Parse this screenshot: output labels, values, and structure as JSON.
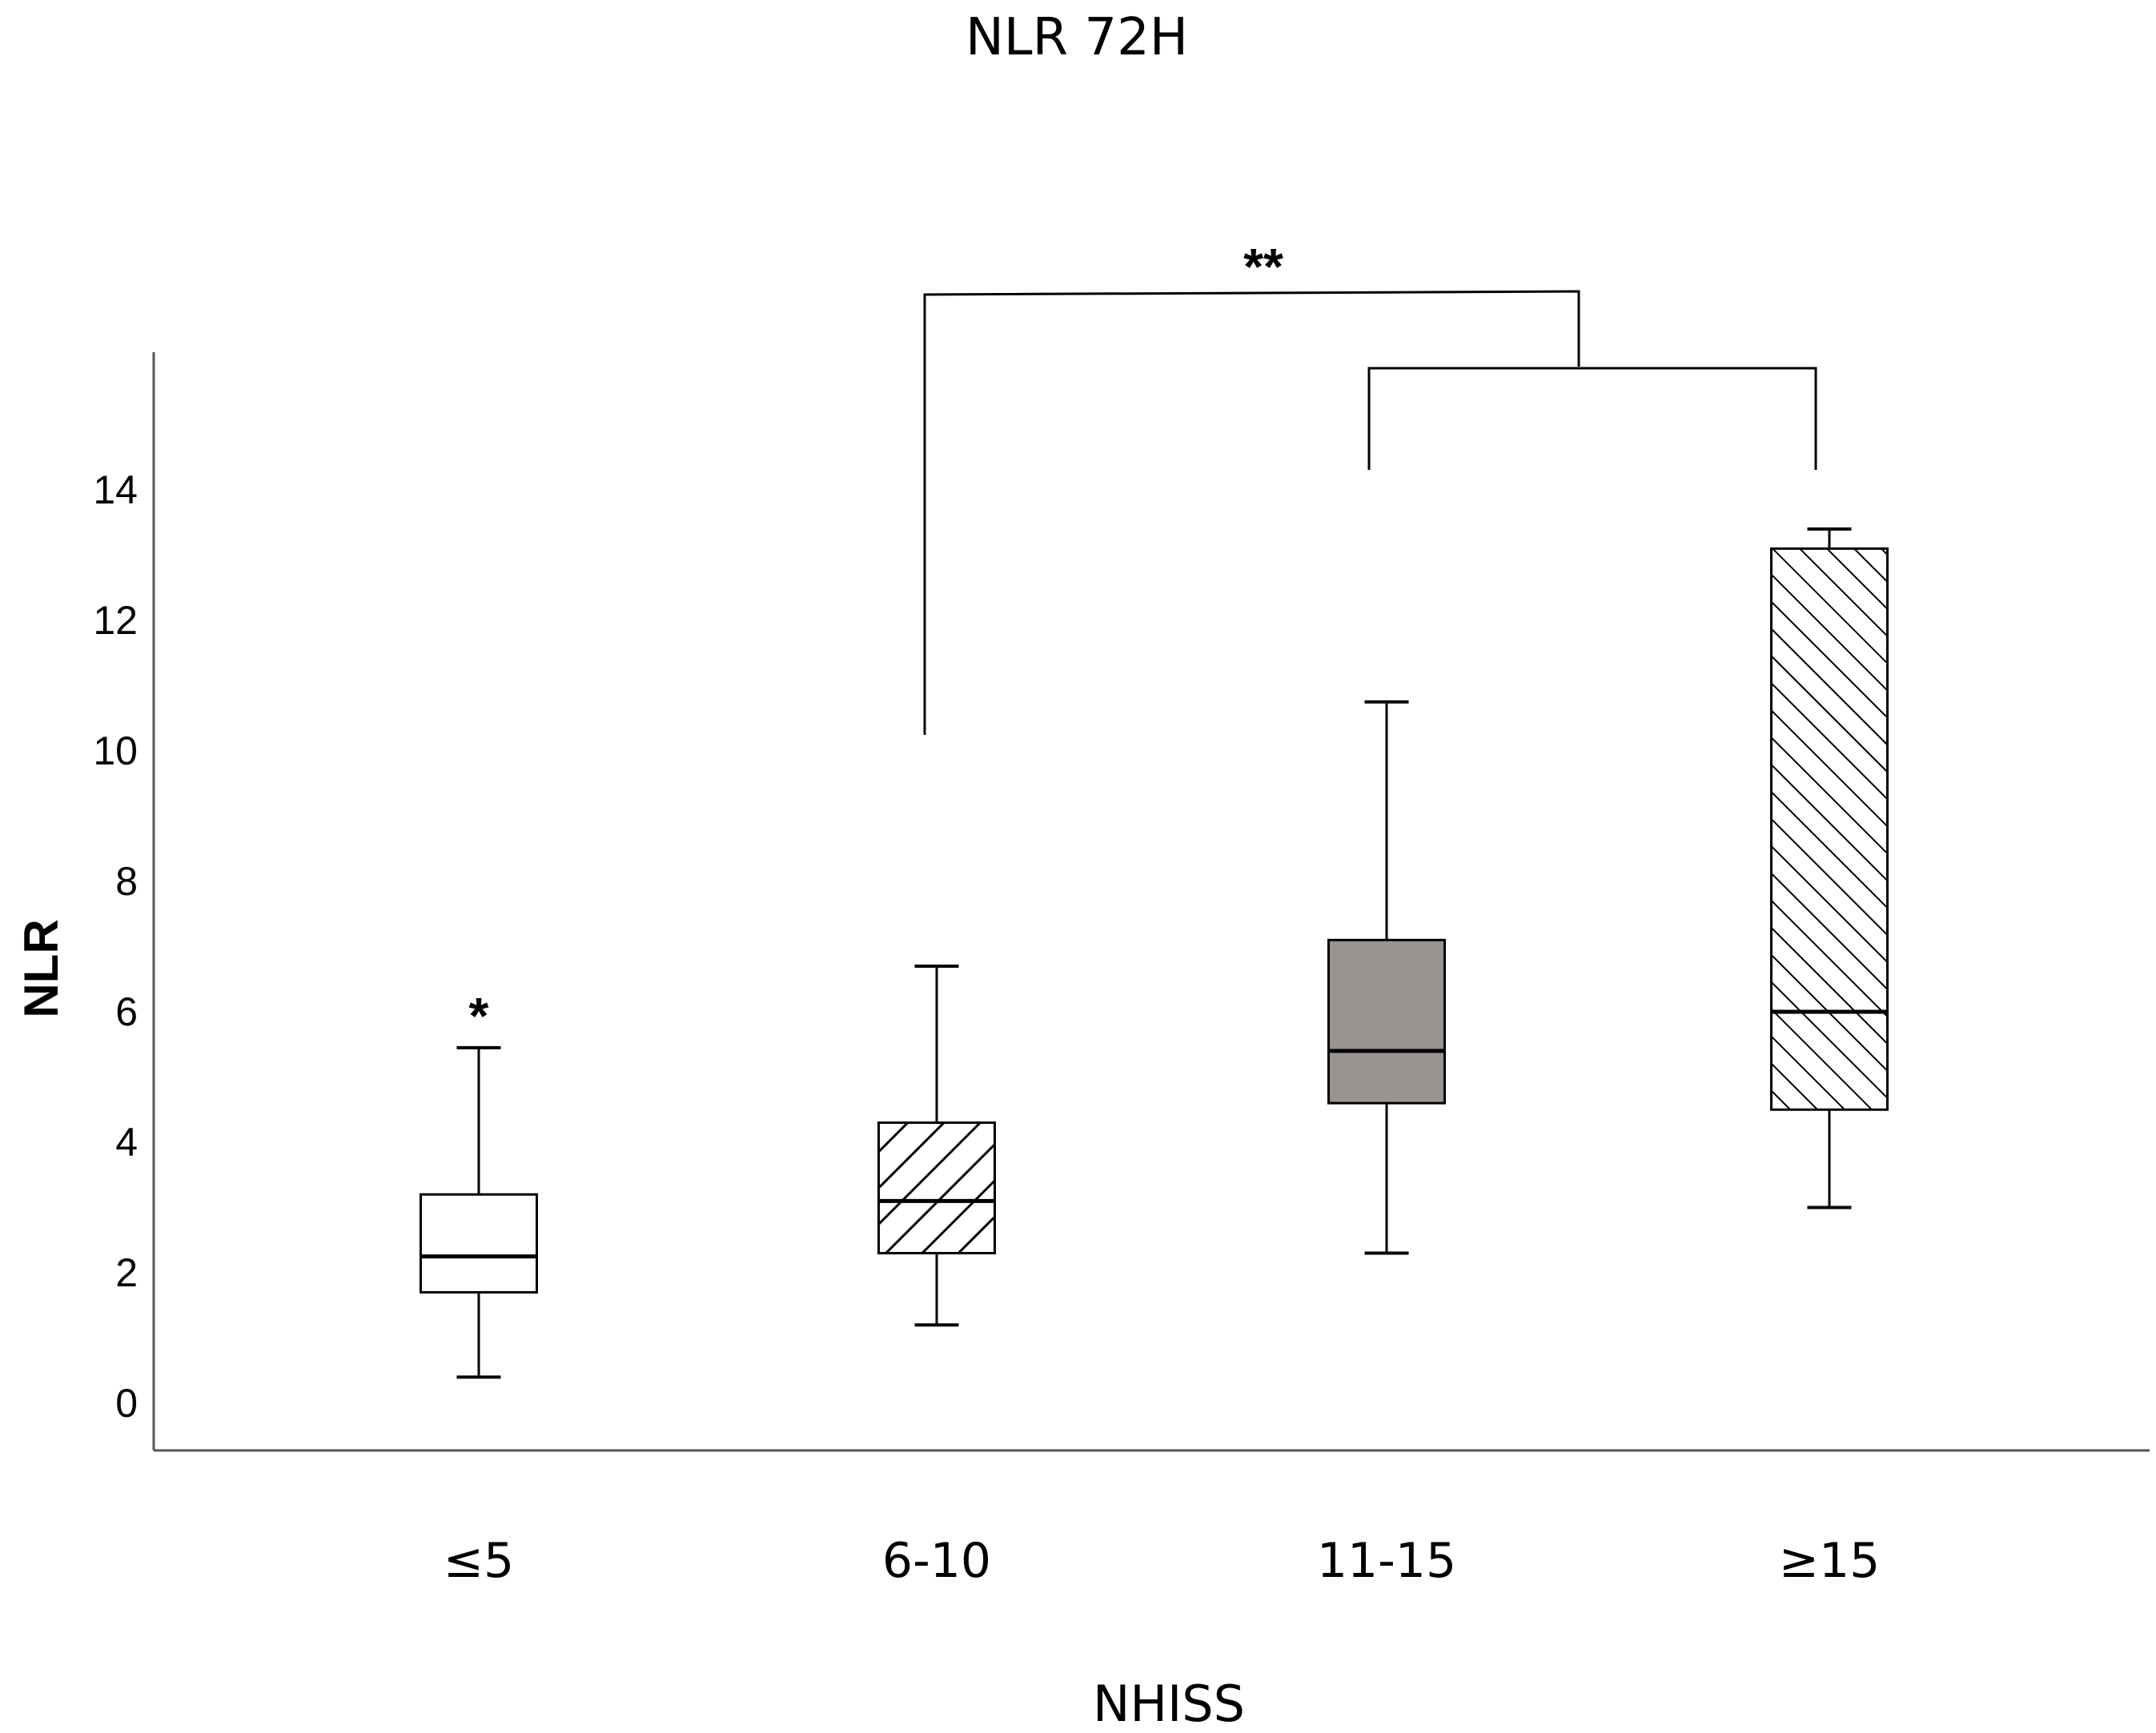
{
  "chart_data": {
    "type": "box",
    "title": "NLR 72H",
    "xlabel": "NHISS",
    "ylabel": "NLR",
    "ylim": [
      -0.7,
      16
    ],
    "yticks": [
      0,
      2,
      4,
      6,
      8,
      10,
      12,
      14
    ],
    "grid": false,
    "categories": [
      "≤5",
      "6-10",
      "11-15",
      "≥15"
    ],
    "boxes": [
      {
        "category": "≤5",
        "min": 0.4,
        "q1": 1.7,
        "median": 2.25,
        "q3": 3.2,
        "max": 5.45,
        "fill": "#ffffff",
        "pattern": "none",
        "outlier_marker": "*"
      },
      {
        "category": "6-10",
        "min": 1.2,
        "q1": 2.3,
        "median": 3.1,
        "q3": 4.3,
        "max": 6.7,
        "fill": "#ffffff",
        "pattern": "hatch-backslash"
      },
      {
        "category": "11-15",
        "min": 2.3,
        "q1": 4.6,
        "median": 5.4,
        "q3": 7.1,
        "max": 10.75,
        "fill": "#999492",
        "pattern": "none"
      },
      {
        "category": "≥15",
        "min": 3.0,
        "q1": 4.5,
        "median": 6.0,
        "q3": 13.1,
        "max": 13.4,
        "fill": "#ffffff",
        "pattern": "hatch-slash"
      }
    ],
    "annotations": [
      {
        "text": "**",
        "type": "significance-bracket",
        "from": "6-10",
        "to": [
          "11-15",
          "≥15"
        ]
      }
    ]
  }
}
